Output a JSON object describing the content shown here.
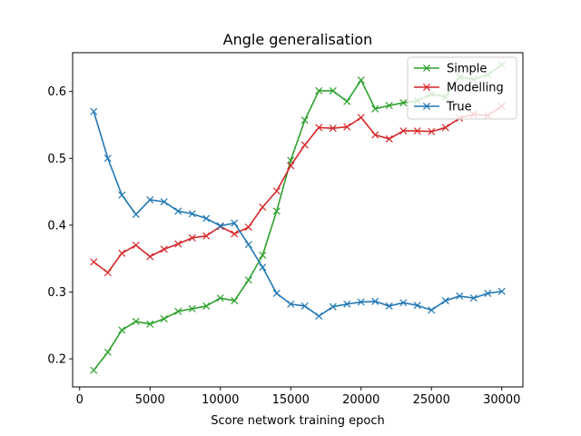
{
  "chart_data": {
    "type": "line",
    "title": "Angle generalisation",
    "xlabel": "Score network training epoch",
    "ylabel": "",
    "xlim": [
      -500,
      31500
    ],
    "ylim": [
      0.158,
      0.658
    ],
    "xticks": [
      0,
      5000,
      10000,
      15000,
      20000,
      25000,
      30000
    ],
    "yticks": [
      0.2,
      0.3,
      0.4,
      0.5,
      0.6
    ],
    "grid": false,
    "legend_position": "top-right",
    "marker": "x",
    "x": [
      1000,
      2000,
      3000,
      4000,
      5000,
      6000,
      7000,
      8000,
      9000,
      10000,
      11000,
      12000,
      13000,
      14000,
      15000,
      16000,
      17000,
      18000,
      19000,
      20000,
      21000,
      22000,
      23000,
      24000,
      25000,
      26000,
      27000,
      28000,
      29000,
      30000
    ],
    "series": [
      {
        "name": "Simple",
        "color": "#2ca02c",
        "values": [
          0.183,
          0.21,
          0.243,
          0.256,
          0.252,
          0.26,
          0.271,
          0.275,
          0.279,
          0.291,
          0.287,
          0.318,
          0.355,
          0.421,
          0.497,
          0.557,
          0.601,
          0.601,
          0.585,
          0.617,
          0.574,
          0.579,
          0.583,
          0.586,
          0.596,
          0.592,
          0.622,
          0.618,
          0.625,
          0.64
        ]
      },
      {
        "name": "Modelling",
        "color": "#d62728",
        "values": [
          0.345,
          0.329,
          0.358,
          0.37,
          0.353,
          0.364,
          0.372,
          0.381,
          0.384,
          0.398,
          0.387,
          0.397,
          0.427,
          0.451,
          0.489,
          0.52,
          0.546,
          0.545,
          0.547,
          0.561,
          0.535,
          0.529,
          0.541,
          0.541,
          0.54,
          0.546,
          0.56,
          0.566,
          0.564,
          0.578
        ]
      },
      {
        "name": "True",
        "color": "#1f77b4",
        "values": [
          0.57,
          0.5,
          0.445,
          0.416,
          0.438,
          0.435,
          0.421,
          0.417,
          0.41,
          0.399,
          0.403,
          0.371,
          0.337,
          0.298,
          0.282,
          0.279,
          0.264,
          0.278,
          0.282,
          0.285,
          0.286,
          0.279,
          0.284,
          0.28,
          0.273,
          0.287,
          0.294,
          0.291,
          0.298,
          0.301
        ]
      }
    ]
  }
}
